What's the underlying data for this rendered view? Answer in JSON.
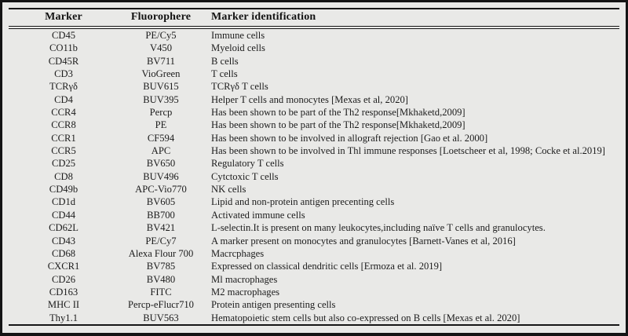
{
  "table": {
    "columns": [
      {
        "label": "Marker"
      },
      {
        "label": "Fluorophere"
      },
      {
        "label": "Marker identification"
      }
    ],
    "rows": [
      [
        "CD45",
        "PE/Cy5",
        "Immune cells"
      ],
      [
        "CO11b",
        "V450",
        "Myeloid cells"
      ],
      [
        "CD45R",
        "BV711",
        "B cells"
      ],
      [
        "CD3",
        "VioGreen",
        "T cells"
      ],
      [
        "TCRγδ",
        "BUV615",
        "TCRγδ T cells"
      ],
      [
        "CD4",
        "BUV395",
        "Helper T cells and monocytes [Mexas et al, 2020]"
      ],
      [
        "CCR4",
        "Percp",
        "Has been shown to be part of the Th2 response[Mkhaketd,2009]"
      ],
      [
        "CCR8",
        "PE",
        "Has been shown to be part of the Th2 response[Mkhaketd,2009]"
      ],
      [
        "CCR1",
        "CF594",
        "Has been shown to be involved in allograft rejection [Gao et al. 2000]"
      ],
      [
        "CCR5",
        "APC",
        "Has been shown to be involved in Thl immune responses [Loetscheer et al, 1998; Cocke et al.2019]"
      ],
      [
        "CD25",
        "BV650",
        "Regulatory T cells"
      ],
      [
        "CD8",
        "BUV496",
        "Cytctoxic T cells"
      ],
      [
        "CD49b",
        "APC-Vio770",
        "NK cells"
      ],
      [
        "CD1d",
        "BV605",
        "Lipid and non-protein antigen precenting cells"
      ],
      [
        "CD44",
        "BB700",
        "Activated immune cells"
      ],
      [
        "CD62L",
        "BV421",
        "L-selectin.It is present on many leukocytes,including naïve T cells and granulocytes."
      ],
      [
        "CD43",
        "PE/Cy7",
        "A marker present on monocytes and granulocytes [Barnett-Vanes et al, 2016]"
      ],
      [
        "CD68",
        "Alexa Flour 700",
        "Macrcphages"
      ],
      [
        "CXCR1",
        "BV785",
        "Expressed on classical dendritic cells [Ermoza et al. 2019]"
      ],
      [
        "CD26",
        "BV480",
        "Ml macrophages"
      ],
      [
        "CD163",
        "FITC",
        "M2 macrophages"
      ],
      [
        "MHC II",
        "Percp-eFlucr710",
        "Protein antigen presenting cells"
      ],
      [
        "Thy1.1",
        "BUV563",
        "Hematopoietic stem cells but also co-expressed on B cells [Mexas et al. 2020]"
      ]
    ]
  },
  "colors": {
    "page_background": "#e9e9e7",
    "border": "#141414",
    "text": "#1c1c1c"
  }
}
